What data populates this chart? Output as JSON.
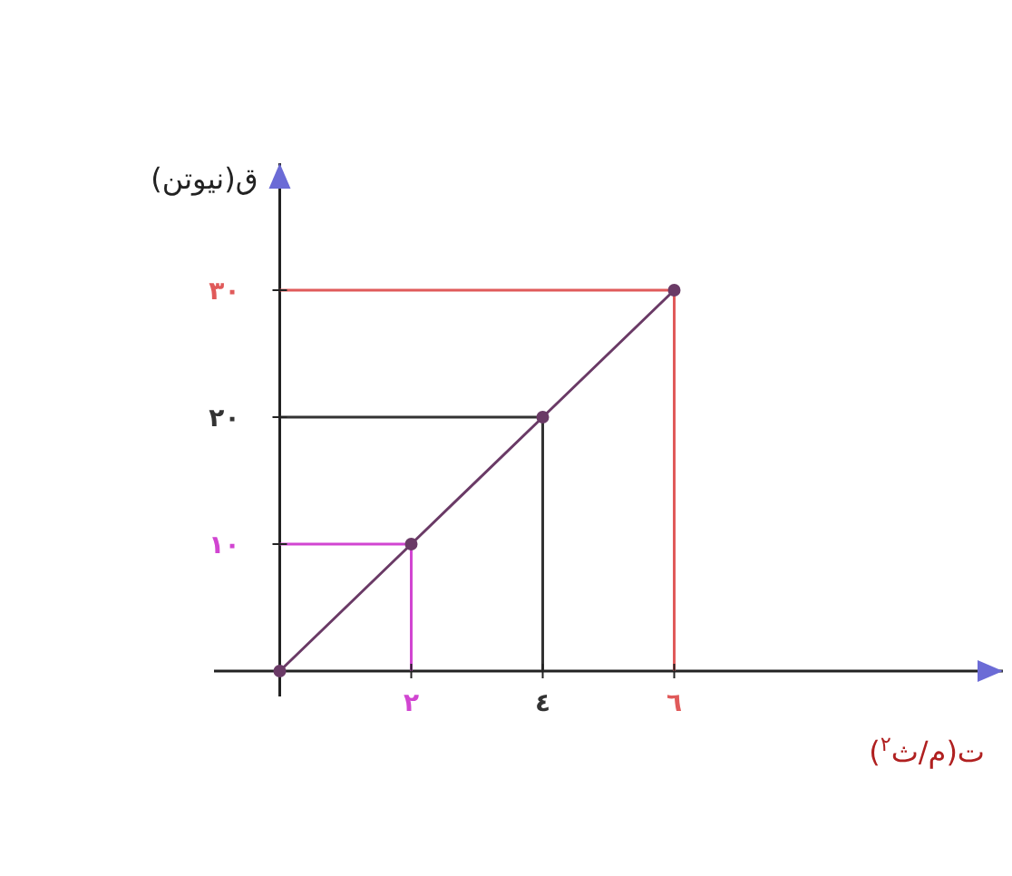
{
  "chart_data": {
    "type": "line",
    "xlabel": "ت(م/ث$^{٢}$)",
    "ylabel": "ق(نيوتن)",
    "xlim": [
      -1,
      11
    ],
    "ylim": [
      -2,
      40
    ],
    "xticks": [
      {
        "value": 2,
        "label": "٢"
      },
      {
        "value": 4,
        "label": "٤"
      },
      {
        "value": 6,
        "label": "٦"
      }
    ],
    "yticks": [
      {
        "value": 10,
        "label": "١٠"
      },
      {
        "value": 20,
        "label": "٢٠"
      },
      {
        "value": 30,
        "label": "٣٠"
      }
    ],
    "grid": false,
    "marker": "circle",
    "line_style": "solid",
    "series": [
      {
        "color": "#6a3a66",
        "x": [
          0,
          2,
          4,
          6
        ],
        "values": [
          0,
          10,
          20,
          30
        ]
      },
      {
        "color": "#d145d1",
        "x": [
          0,
          2,
          2
        ],
        "values": [
          10,
          10,
          0
        ],
        "marker": "none"
      },
      {
        "color": "#333333",
        "x": [
          0,
          4,
          4
        ],
        "values": [
          20,
          20,
          0
        ],
        "marker": "none"
      },
      {
        "color": "#e05a5a",
        "x": [
          0,
          6,
          6
        ],
        "values": [
          30,
          30,
          0
        ],
        "marker": "none"
      }
    ]
  }
}
